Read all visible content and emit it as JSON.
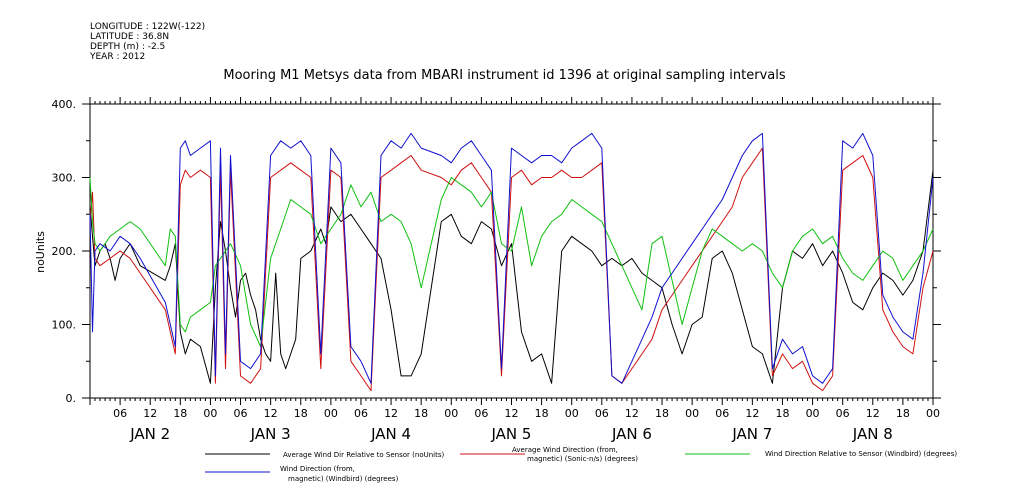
{
  "header": {
    "longitude": "LONGITUDE : 122W(-122)",
    "latitude": "LATITUDE : 36.8N",
    "depth": "DEPTH (m) : -2.5",
    "year": "YEAR : 2012"
  },
  "chart_data": {
    "type": "line",
    "title": "Mooring M1 Metsys data from MBARI instrument id 1396 at original sampling intervals",
    "ylabel": "noUnits",
    "ylim": [
      0,
      400
    ],
    "yticks": [
      0,
      100,
      200,
      300,
      400
    ],
    "ytick_labels": [
      "0.",
      "100.",
      "200.",
      "300.",
      "400."
    ],
    "xlim_hours": [
      0,
      168
    ],
    "x_hour_labels": [
      "06",
      "12",
      "18",
      "00",
      "06",
      "12",
      "18",
      "00",
      "06",
      "12",
      "18",
      "00",
      "06",
      "12",
      "18",
      "00",
      "06",
      "12",
      "18",
      "00",
      "06",
      "12",
      "18",
      "00",
      "06",
      "12",
      "18",
      "00"
    ],
    "day_labels": [
      "JAN 2",
      "JAN 3",
      "JAN 4",
      "JAN 5",
      "JAN 6",
      "JAN 7",
      "JAN 8"
    ],
    "series": [
      {
        "name": "Average Wind Dir Relative to Sensor (noUnits)",
        "color": "#000000",
        "x": [
          0,
          0.5,
          1,
          2,
          3,
          4,
          5,
          6,
          8,
          10,
          15,
          16,
          17,
          18,
          19,
          20,
          22,
          24,
          25,
          26,
          27,
          28,
          29,
          30,
          31,
          32,
          33,
          34,
          35,
          36,
          37,
          38,
          39,
          40,
          41,
          42,
          44,
          46,
          47,
          48,
          50,
          52,
          54,
          56,
          58,
          60,
          62,
          64,
          66,
          70,
          72,
          74,
          76,
          78,
          80,
          82,
          84,
          86,
          88,
          90,
          92,
          94,
          96,
          98,
          100,
          102,
          104,
          106,
          108,
          110,
          112,
          114,
          116,
          118,
          120,
          122,
          124,
          126,
          128,
          130,
          132,
          134,
          136,
          138,
          140,
          142,
          144,
          146,
          148,
          150,
          152,
          154,
          156,
          158,
          160,
          162,
          164,
          166,
          168
        ],
        "y": [
          260,
          220,
          180,
          200,
          210,
          190,
          160,
          190,
          210,
          180,
          160,
          180,
          210,
          90,
          60,
          80,
          70,
          20,
          150,
          240,
          200,
          150,
          110,
          160,
          170,
          140,
          120,
          80,
          60,
          50,
          170,
          60,
          40,
          60,
          80,
          190,
          200,
          230,
          210,
          260,
          240,
          250,
          230,
          210,
          190,
          120,
          30,
          30,
          60,
          240,
          250,
          220,
          210,
          240,
          230,
          180,
          210,
          90,
          50,
          60,
          20,
          200,
          220,
          210,
          200,
          180,
          190,
          180,
          190,
          170,
          160,
          150,
          100,
          60,
          100,
          110,
          190,
          200,
          170,
          120,
          70,
          60,
          20,
          150,
          200,
          190,
          210,
          180,
          200,
          170,
          130,
          120,
          150,
          170,
          160,
          140,
          160,
          200,
          310
        ]
      },
      {
        "name": "Average Wind Direction (from, magnetic) (Sonic-n/s) (degrees)",
        "color": "#d01010",
        "x": [
          0,
          0.5,
          1,
          2,
          4,
          6,
          8,
          10,
          15,
          16,
          17,
          18,
          19,
          20,
          22,
          24,
          25,
          26,
          27,
          28,
          30,
          32,
          34,
          36,
          38,
          40,
          42,
          44,
          46,
          48,
          50,
          52,
          54,
          56,
          58,
          60,
          62,
          64,
          66,
          70,
          72,
          74,
          76,
          78,
          80,
          82,
          84,
          86,
          88,
          90,
          92,
          94,
          96,
          98,
          100,
          102,
          104,
          106,
          108,
          110,
          112,
          114,
          116,
          118,
          120,
          122,
          124,
          126,
          128,
          130,
          132,
          134,
          136,
          138,
          140,
          142,
          144,
          146,
          148,
          150,
          152,
          154,
          156,
          158,
          160,
          162,
          164,
          166,
          168
        ],
        "y": [
          240,
          280,
          190,
          180,
          190,
          200,
          190,
          170,
          120,
          90,
          60,
          290,
          310,
          300,
          310,
          300,
          20,
          310,
          40,
          310,
          30,
          20,
          40,
          300,
          310,
          320,
          310,
          300,
          40,
          310,
          300,
          50,
          30,
          10,
          300,
          310,
          320,
          330,
          310,
          300,
          290,
          310,
          320,
          300,
          280,
          30,
          300,
          310,
          290,
          300,
          300,
          310,
          300,
          300,
          310,
          320,
          30,
          20,
          40,
          60,
          80,
          120,
          140,
          160,
          180,
          200,
          220,
          240,
          260,
          300,
          320,
          340,
          30,
          60,
          40,
          50,
          20,
          10,
          30,
          310,
          320,
          330,
          300,
          120,
          90,
          70,
          60,
          150,
          200
        ]
      },
      {
        "name": "Wind Direction Relative to Sensor (Windbird) (degrees)",
        "color": "#10c010",
        "x": [
          0,
          0.5,
          1,
          2,
          4,
          6,
          8,
          10,
          15,
          16,
          17,
          18,
          19,
          20,
          22,
          24,
          25,
          26,
          27,
          28,
          30,
          32,
          34,
          36,
          38,
          40,
          42,
          44,
          46,
          48,
          50,
          52,
          54,
          56,
          58,
          60,
          62,
          64,
          66,
          70,
          72,
          74,
          76,
          78,
          80,
          82,
          84,
          86,
          88,
          90,
          92,
          94,
          96,
          98,
          100,
          102,
          104,
          106,
          108,
          110,
          112,
          114,
          116,
          118,
          120,
          122,
          124,
          126,
          128,
          130,
          132,
          134,
          136,
          138,
          140,
          142,
          144,
          146,
          148,
          150,
          152,
          154,
          156,
          158,
          160,
          162,
          164,
          166,
          168
        ],
        "y": [
          300,
          240,
          210,
          200,
          220,
          230,
          240,
          230,
          180,
          230,
          220,
          100,
          90,
          110,
          120,
          130,
          180,
          190,
          200,
          210,
          180,
          100,
          70,
          190,
          230,
          270,
          260,
          250,
          210,
          230,
          250,
          290,
          260,
          280,
          240,
          250,
          240,
          210,
          150,
          270,
          300,
          290,
          280,
          260,
          280,
          210,
          200,
          260,
          180,
          220,
          240,
          250,
          270,
          260,
          250,
          240,
          210,
          180,
          150,
          120,
          210,
          220,
          160,
          100,
          150,
          200,
          230,
          220,
          210,
          200,
          210,
          200,
          170,
          150,
          200,
          220,
          230,
          210,
          220,
          190,
          170,
          160,
          180,
          200,
          190,
          160,
          180,
          200,
          230
        ]
      },
      {
        "name": "Wind Direction (from, magnetic) (Windbird) (degrees)",
        "color": "#1010d0",
        "x": [
          0,
          0.5,
          1,
          2,
          4,
          6,
          8,
          10,
          15,
          16,
          17,
          18,
          19,
          20,
          22,
          24,
          25,
          26,
          27,
          28,
          30,
          32,
          34,
          36,
          38,
          40,
          42,
          44,
          46,
          48,
          50,
          52,
          54,
          56,
          58,
          60,
          62,
          64,
          66,
          70,
          72,
          74,
          76,
          78,
          80,
          82,
          84,
          86,
          88,
          90,
          92,
          94,
          96,
          98,
          100,
          102,
          104,
          106,
          108,
          110,
          112,
          114,
          116,
          118,
          120,
          122,
          124,
          126,
          128,
          130,
          132,
          134,
          136,
          138,
          140,
          142,
          144,
          146,
          148,
          150,
          152,
          154,
          156,
          158,
          160,
          162,
          164,
          166,
          168
        ],
        "y": [
          250,
          90,
          200,
          210,
          200,
          220,
          210,
          190,
          130,
          100,
          70,
          340,
          350,
          330,
          340,
          350,
          30,
          340,
          60,
          330,
          50,
          40,
          60,
          330,
          350,
          340,
          350,
          330,
          60,
          340,
          320,
          70,
          50,
          20,
          330,
          350,
          340,
          360,
          340,
          330,
          320,
          340,
          350,
          330,
          310,
          40,
          340,
          330,
          320,
          330,
          330,
          320,
          340,
          350,
          360,
          340,
          30,
          20,
          50,
          80,
          110,
          150,
          170,
          190,
          210,
          230,
          250,
          270,
          300,
          330,
          350,
          360,
          40,
          80,
          60,
          70,
          30,
          20,
          40,
          350,
          340,
          360,
          330,
          140,
          110,
          90,
          80,
          170,
          300
        ]
      }
    ]
  },
  "legend": {
    "black_label": "Average Wind Dir Relative to Sensor (noUnits)",
    "red_label_1": "Average Wind Direction (from,",
    "red_label_2": "magnetic) (Sonic-n/s) (degrees)",
    "green_label": "Wind Direction Relative to Sensor (Windbird) (degrees)",
    "blue_label_1": "Wind Direction (from,",
    "blue_label_2": "magnetic) (Windbird) (degrees)"
  }
}
